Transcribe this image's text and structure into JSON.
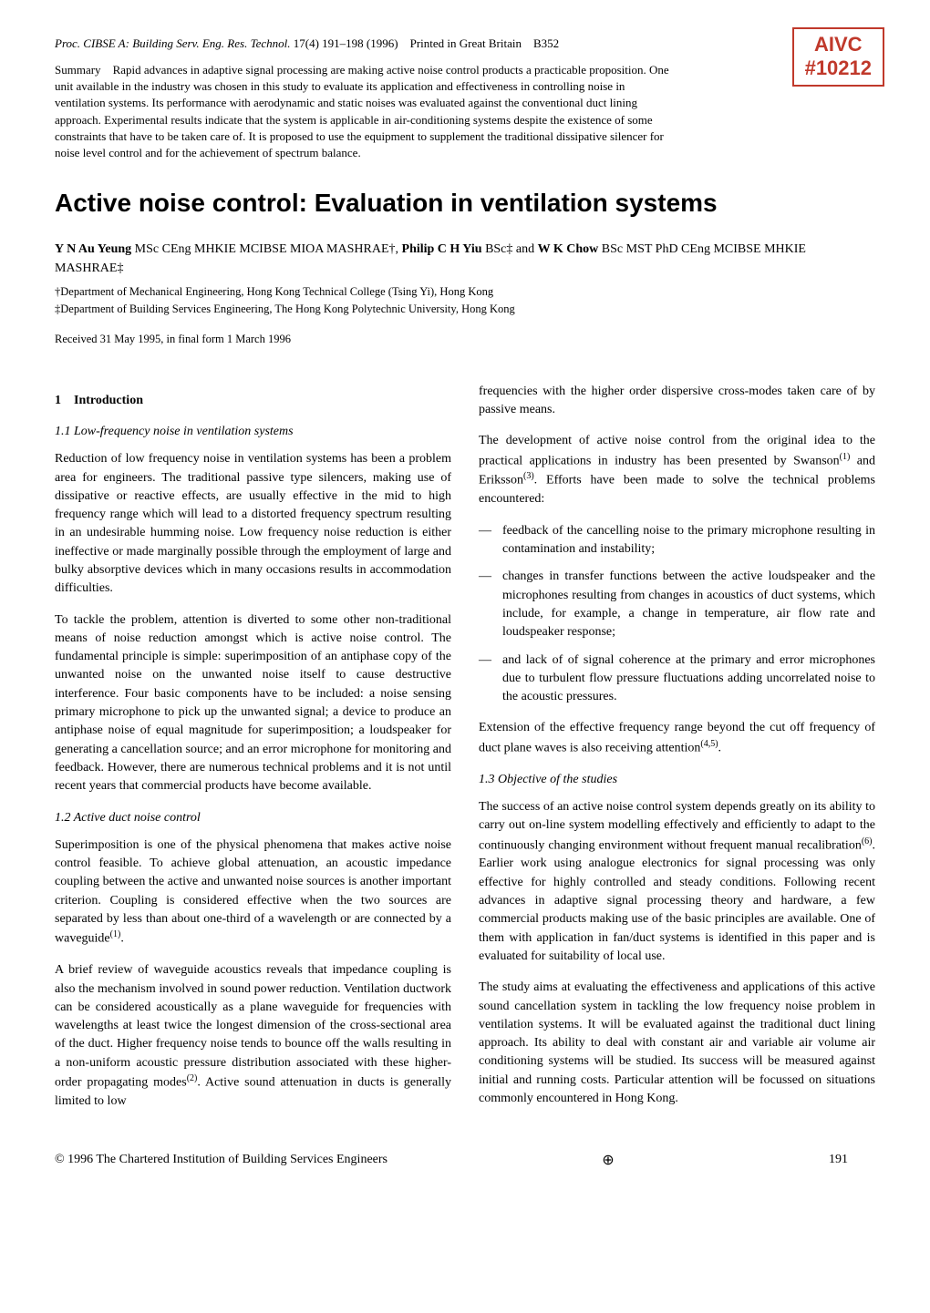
{
  "aivc": {
    "line1": "AIVC",
    "line2": "#10212"
  },
  "citation": {
    "journal": "Proc. CIBSE A: Building Serv. Eng. Res. Technol.",
    "vol": "17(4) 191–198 (1996)",
    "printed": "Printed in Great Britain",
    "code": "B352"
  },
  "summary": {
    "label": "Summary",
    "text": "Rapid advances in adaptive signal processing are making active noise control products a practicable proposition. One unit available in the industry was chosen in this study to evaluate its application and effectiveness in controlling noise in ventilation systems. Its performance with aerodynamic and static noises was evaluated against the conventional duct lining approach. Experimental results indicate that the system is applicable in air-conditioning systems despite the existence of some constraints that have to be taken care of. It is proposed to use the equipment to supplement the traditional dissipative silencer for noise level control and for the achievement of spectrum balance."
  },
  "title": "Active noise control: Evaluation in ventilation systems",
  "authors": {
    "a1_name": "Y N Au Yeung",
    "a1_cred": " MSc CEng MHKIE MCIBSE MIOA MASHRAE†, ",
    "a2_name": "Philip C H Yiu",
    "a2_cred": " BSc‡ and ",
    "a3_name": "W K Chow",
    "a3_cred": " BSc MST PhD CEng MCIBSE MHKIE MASHRAE‡"
  },
  "affiliations": {
    "aff1": "†Department of Mechanical Engineering, Hong Kong Technical College (Tsing Yi), Hong Kong",
    "aff2": "‡Department of Building Services Engineering, The Hong Kong Polytechnic University, Hong Kong"
  },
  "received": "Received 31 May 1995, in final form 1 March 1996",
  "left": {
    "sec_num": "1",
    "sec_title": "Introduction",
    "sub11": "1.1   Low-frequency noise in ventilation systems",
    "p1": "Reduction of low frequency noise in ventilation systems has been a problem area for engineers. The traditional passive type silencers, making use of dissipative or reactive effects, are usually effective in the mid to high frequency range which will lead to a distorted frequency spectrum resulting in an undesirable humming noise. Low frequency noise reduction is either ineffective or made marginally possible through the employment of large and bulky absorptive devices which in many occasions results in accommodation difficulties.",
    "p2": "To tackle the problem, attention is diverted to some other non-traditional means of noise reduction amongst which is active noise control. The fundamental principle is simple: superimposition of an antiphase copy of the unwanted noise on the unwanted noise itself to cause destructive interference. Four basic components have to be included: a noise sensing primary microphone to pick up the unwanted signal; a device to produce an antiphase noise of equal magnitude for superimposition; a loudspeaker for generating a cancellation source; and an error microphone for monitoring and feedback. However, there are numerous technical problems and it is not until recent years that commercial products have become available.",
    "sub12": "1.2   Active duct noise control",
    "p3a": "Superimposition is one of the physical phenomena that makes active noise control feasible. To achieve global attenuation, an acoustic impedance coupling between the active and unwanted noise sources is another important criterion. Coupling is considered effective when the two sources are separated by less than about one-third of a wavelength or are connected by a waveguide",
    "p3b": ".",
    "p4a": "A brief review of waveguide acoustics reveals that impedance coupling is also the mechanism involved in sound power reduction. Ventilation ductwork can be considered acoustically as a plane waveguide for frequencies with wavelengths at least twice the longest dimension of the cross-sectional area of the duct. Higher frequency noise tends to bounce off the walls resulting in a non-uniform acoustic pressure distribution associated with these higher-order propagating modes",
    "p4b": ". Active sound attenuation in ducts is generally limited to low"
  },
  "right": {
    "p0": "frequencies with the higher order dispersive cross-modes taken care of by passive means.",
    "p1a": "The development of active noise control from the original idea to the practical applications in industry has been presented by Swanson",
    "p1b": " and Eriksson",
    "p1c": ". Efforts have been made to solve the technical problems encountered:",
    "li1": "feedback of the cancelling noise to the primary microphone resulting in contamination and instability;",
    "li2": "changes in transfer functions between the active loudspeaker and the microphones resulting from changes in acoustics of duct systems, which include, for example, a change in temperature, air flow rate and loudspeaker response;",
    "li3": "and lack of of signal coherence at the primary and error microphones due to turbulent flow pressure fluctuations adding uncorrelated noise to the acoustic pressures.",
    "p2a": "Extension of the effective frequency range beyond the cut off frequency of duct plane waves is also receiving attention",
    "p2b": ".",
    "sub13": "1.3   Objective of the studies",
    "p3a": "The success of an active noise control system depends greatly on its ability to carry out on-line system modelling effectively and efficiently to adapt to the continuously changing environment without frequent manual recalibration",
    "p3b": ". Earlier work using analogue electronics for signal processing was only effective for highly controlled and steady conditions. Following recent advances in adaptive signal processing theory and hardware, a few commercial products making use of the basic principles are available. One of them with application in fan/duct systems is identified in this paper and is evaluated for suitability of local use.",
    "p4": "The study aims at evaluating the effectiveness and applications of this active sound cancellation system in tackling the low frequency noise problem in ventilation systems. It will be evaluated against the traditional duct lining approach. Its ability to deal with constant air and variable air volume air conditioning systems will be studied. Its success will be measured against initial and running costs. Particular attention will be focussed on situations commonly encountered in Hong Kong."
  },
  "sup": {
    "r1": "(1)",
    "r2": "(2)",
    "r3": "(3)",
    "r45": "(4,5)",
    "r6": "(6)"
  },
  "footer": {
    "copyright": "© 1996 The Chartered Institution of Building Services Engineers",
    "symbol": "⊕",
    "pagenum": "191"
  }
}
